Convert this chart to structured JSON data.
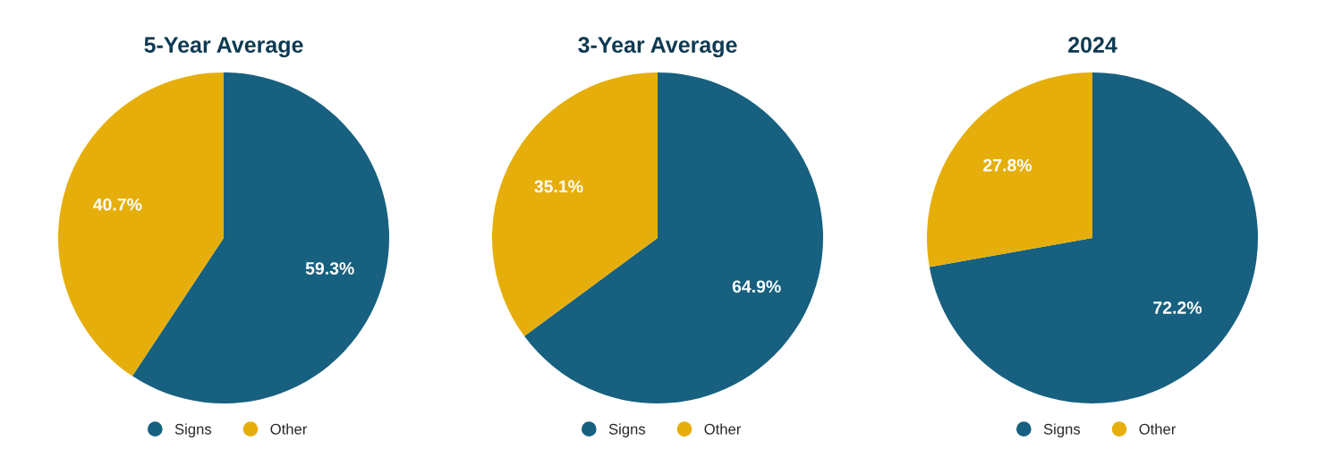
{
  "chart_data": [
    {
      "type": "pie",
      "title": "5-Year Average",
      "categories": [
        "Signs",
        "Other"
      ],
      "values": [
        59.3,
        40.7
      ],
      "colors": [
        "#17607f",
        "#e6ae0a"
      ],
      "value_labels": [
        "59.3%",
        "40.7%"
      ],
      "legend": "bottom"
    },
    {
      "type": "pie",
      "title": "3-Year Average",
      "categories": [
        "Signs",
        "Other"
      ],
      "values": [
        64.9,
        35.1
      ],
      "colors": [
        "#17607f",
        "#e6ae0a"
      ],
      "value_labels": [
        "64.9%",
        "35.1%"
      ],
      "legend": "bottom"
    },
    {
      "type": "pie",
      "title": "2024",
      "categories": [
        "Signs",
        "Other"
      ],
      "values": [
        72.2,
        27.8
      ],
      "colors": [
        "#17607f",
        "#e6ae0a"
      ],
      "value_labels": [
        "72.2%",
        "27.8%"
      ],
      "legend": "bottom"
    }
  ]
}
